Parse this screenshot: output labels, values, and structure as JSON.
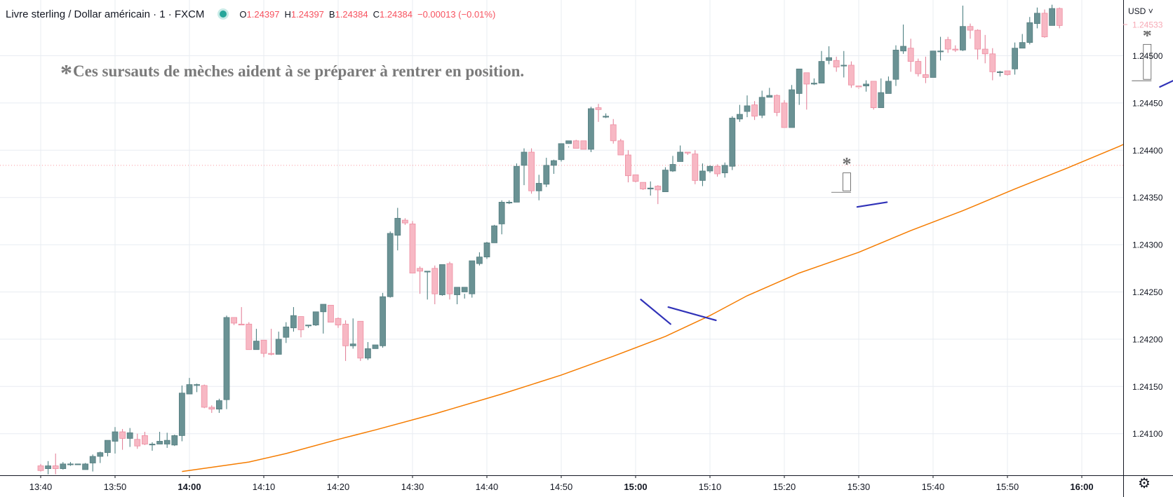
{
  "header": {
    "symbol": "Livre sterling / Dollar américain · 1 · FXCM",
    "open_label": "O",
    "open": "1.24397",
    "high_label": "H",
    "high": "1.24397",
    "low_label": "B",
    "low": "1.24384",
    "close_label": "C",
    "close": "1.24384",
    "change": "−0.00013 (−0.01%)"
  },
  "currency_button": "USD",
  "annotation": {
    "star": "*",
    "text": "Ces sursauts de mèches aident à se préparer à rentrer en position."
  },
  "colors": {
    "up": "#6a9294",
    "down": "#f7b8c4",
    "ma": "#f57c00",
    "trendline": "#3032b8",
    "grid": "#e8ecf2",
    "price_line": "#f7525f"
  },
  "chart_data": {
    "type": "candlestick",
    "x_ticks": [
      {
        "label": "13:40",
        "bold": false
      },
      {
        "label": "13:50",
        "bold": false
      },
      {
        "label": "14:00",
        "bold": true
      },
      {
        "label": "14:10",
        "bold": false
      },
      {
        "label": "14:20",
        "bold": false
      },
      {
        "label": "14:30",
        "bold": false
      },
      {
        "label": "14:40",
        "bold": false
      },
      {
        "label": "14:50",
        "bold": false
      },
      {
        "label": "15:00",
        "bold": true
      },
      {
        "label": "15:10",
        "bold": false
      },
      {
        "label": "15:20",
        "bold": false
      },
      {
        "label": "15:30",
        "bold": false
      },
      {
        "label": "15:40",
        "bold": false
      },
      {
        "label": "15:50",
        "bold": false
      },
      {
        "label": "16:00",
        "bold": true
      }
    ],
    "y_ticks": [
      "1.24500",
      "1.24450",
      "1.24400",
      "1.24350",
      "1.24300",
      "1.24250",
      "1.24200",
      "1.24150",
      "1.24100"
    ],
    "y_tick_values": [
      1.245,
      1.2445,
      1.244,
      1.2435,
      1.243,
      1.2425,
      1.242,
      1.2415,
      1.241
    ],
    "ylim": [
      1.24058,
      1.24558
    ],
    "current_price": "1.24533",
    "current_price_value": 1.24533,
    "dotted_level": 1.24384,
    "candles_ohlc": [
      [
        1.24066,
        1.24061,
        1.24068,
        1.2406
      ],
      [
        1.24063,
        1.24066,
        1.24071,
        1.24057
      ],
      [
        1.24066,
        1.24063,
        1.24079,
        1.24057
      ],
      [
        1.24063,
        1.24068,
        1.2407,
        1.24062
      ],
      [
        1.24068,
        1.24068,
        1.2407,
        1.24066
      ],
      [
        1.24068,
        1.24068,
        1.24068,
        1.24068
      ],
      [
        1.24062,
        1.24068,
        1.24069,
        1.24062
      ],
      [
        1.24069,
        1.24076,
        1.24078,
        1.2406
      ],
      [
        1.24076,
        1.2408,
        1.24081,
        1.24069
      ],
      [
        1.2408,
        1.24093,
        1.24093,
        1.24076
      ],
      [
        1.24092,
        1.24102,
        1.24107,
        1.24079
      ],
      [
        1.24102,
        1.24095,
        1.24105,
        1.24083
      ],
      [
        1.24095,
        1.24101,
        1.24106,
        1.24086
      ],
      [
        1.24094,
        1.24087,
        1.241,
        1.24084
      ],
      [
        1.24098,
        1.24089,
        1.24102,
        1.24088
      ],
      [
        1.24089,
        1.24089,
        1.24091,
        1.24082
      ],
      [
        1.24089,
        1.24092,
        1.24102,
        1.2409
      ],
      [
        1.24089,
        1.24093,
        1.24101,
        1.24085
      ],
      [
        1.24088,
        1.24098,
        1.24099,
        1.24087
      ],
      [
        1.24098,
        1.24143,
        1.24151,
        1.24092
      ],
      [
        1.24142,
        1.24152,
        1.24159,
        1.24145
      ],
      [
        1.24152,
        1.24152,
        1.24153,
        1.24144
      ],
      [
        1.24151,
        1.24128,
        1.24152,
        1.24127
      ],
      [
        1.24128,
        1.24126,
        1.2413,
        1.24122
      ],
      [
        1.24126,
        1.24135,
        1.24137,
        1.24122
      ],
      [
        1.24136,
        1.24223,
        1.24225,
        1.24126
      ],
      [
        1.24223,
        1.24217,
        1.24221,
        1.24215
      ],
      [
        1.24216,
        1.24215,
        1.24234,
        1.24216
      ],
      [
        1.24216,
        1.24189,
        1.24218,
        1.24191
      ],
      [
        1.24189,
        1.24198,
        1.24211,
        1.2419
      ],
      [
        1.24199,
        1.24185,
        1.24199,
        1.24181
      ],
      [
        1.24185,
        1.24184,
        1.24211,
        1.24183
      ],
      [
        1.24184,
        1.242,
        1.24208,
        1.24196
      ],
      [
        1.24202,
        1.24213,
        1.24218,
        1.24196
      ],
      [
        1.24212,
        1.24225,
        1.24234,
        1.24208
      ],
      [
        1.24224,
        1.2421,
        1.24224,
        1.24202
      ],
      [
        1.24215,
        1.24215,
        1.24214,
        1.24212
      ],
      [
        1.24215,
        1.24229,
        1.24229,
        1.24214
      ],
      [
        1.24229,
        1.24237,
        1.24237,
        1.24206
      ],
      [
        1.24236,
        1.24218,
        1.24236,
        1.24218
      ],
      [
        1.24222,
        1.24215,
        1.24223,
        1.24212
      ],
      [
        1.24216,
        1.24193,
        1.2422,
        1.24177
      ],
      [
        1.24193,
        1.24195,
        1.24222,
        1.2419
      ],
      [
        1.24219,
        1.2418,
        1.24219,
        1.24177
      ],
      [
        1.2418,
        1.2419,
        1.24197,
        1.24178
      ],
      [
        1.2419,
        1.24194,
        1.24193,
        1.24191
      ],
      [
        1.24193,
        1.24245,
        1.24249,
        1.24191
      ],
      [
        1.24245,
        1.24312,
        1.24314,
        1.24244
      ],
      [
        1.2431,
        1.24328,
        1.24339,
        1.24294
      ],
      [
        1.24326,
        1.24323,
        1.24328,
        1.24321
      ],
      [
        1.24322,
        1.2427,
        1.24325,
        1.2427
      ],
      [
        1.24275,
        1.24272,
        1.24277,
        1.24248
      ],
      [
        1.24272,
        1.24272,
        1.24272,
        1.24242
      ],
      [
        1.24275,
        1.24248,
        1.24278,
        1.24237
      ],
      [
        1.24247,
        1.24279,
        1.24279,
        1.24246
      ],
      [
        1.2428,
        1.24248,
        1.24282,
        1.24242
      ],
      [
        1.24247,
        1.24255,
        1.24252,
        1.24237
      ],
      [
        1.2425,
        1.24255,
        1.24248,
        1.24243
      ],
      [
        1.24248,
        1.24283,
        1.24281,
        1.24244
      ],
      [
        1.2428,
        1.24287,
        1.24292,
        1.24278
      ],
      [
        1.24287,
        1.24302,
        1.24303,
        1.24285
      ],
      [
        1.24302,
        1.2432,
        1.24321,
        1.24302
      ],
      [
        1.24322,
        1.24345,
        1.24347,
        1.24311
      ],
      [
        1.24345,
        1.24345,
        1.24347,
        1.24343
      ],
      [
        1.24345,
        1.24383,
        1.24386,
        1.24346
      ],
      [
        1.24384,
        1.24398,
        1.24402,
        1.24363
      ],
      [
        1.24398,
        1.24357,
        1.24402,
        1.24354
      ],
      [
        1.24357,
        1.24365,
        1.24374,
        1.24347
      ],
      [
        1.24364,
        1.24384,
        1.24392,
        1.24361
      ],
      [
        1.24384,
        1.24389,
        1.2439,
        1.24375
      ],
      [
        1.2439,
        1.24407,
        1.24406,
        1.24388
      ],
      [
        1.24407,
        1.2441,
        1.24404,
        1.24403
      ],
      [
        1.2441,
        1.24402,
        1.24411,
        1.24402
      ],
      [
        1.2441,
        1.24401,
        1.2441,
        1.24401
      ],
      [
        1.24401,
        1.24444,
        1.24446,
        1.24398
      ],
      [
        1.24445,
        1.24443,
        1.24449,
        1.2443
      ],
      [
        1.24435,
        1.24436,
        1.24439,
        1.24434
      ],
      [
        1.24427,
        1.2441,
        1.24433,
        1.24407
      ],
      [
        1.2441,
        1.24395,
        1.24412,
        1.24395
      ],
      [
        1.24395,
        1.24373,
        1.244,
        1.24366
      ],
      [
        1.24374,
        1.24367,
        1.24373,
        1.24366
      ],
      [
        1.24366,
        1.24359,
        1.24366,
        1.24358
      ],
      [
        1.24359,
        1.2436,
        1.24367,
        1.24352
      ],
      [
        1.24362,
        1.24358,
        1.24363,
        1.24343
      ],
      [
        1.24356,
        1.24379,
        1.24382,
        1.24356
      ],
      [
        1.24378,
        1.24385,
        1.24394,
        1.24377
      ],
      [
        1.24388,
        1.24398,
        1.24405,
        1.24391
      ],
      [
        1.24398,
        1.24397,
        1.24398,
        1.24395
      ],
      [
        1.24396,
        1.24368,
        1.244,
        1.24364
      ],
      [
        1.24368,
        1.24378,
        1.24386,
        1.24362
      ],
      [
        1.24378,
        1.24383,
        1.24384,
        1.24376
      ],
      [
        1.24383,
        1.24375,
        1.24385,
        1.24372
      ],
      [
        1.24376,
        1.24384,
        1.24387,
        1.24371
      ],
      [
        1.24383,
        1.24434,
        1.24436,
        1.24379
      ],
      [
        1.24433,
        1.24438,
        1.24448,
        1.2443
      ],
      [
        1.24441,
        1.24447,
        1.24458,
        1.24435
      ],
      [
        1.24448,
        1.24436,
        1.24452,
        1.24432
      ],
      [
        1.24437,
        1.24456,
        1.24463,
        1.24434
      ],
      [
        1.24456,
        1.24458,
        1.24466,
        1.24457
      ],
      [
        1.24458,
        1.2444,
        1.24459,
        1.24436
      ],
      [
        1.2445,
        1.24424,
        1.24453,
        1.24425
      ],
      [
        1.24424,
        1.24464,
        1.24469,
        1.24424
      ],
      [
        1.2446,
        1.24486,
        1.24486,
        1.24448
      ],
      [
        1.24482,
        1.2447,
        1.24474,
        1.24443
      ],
      [
        1.2447,
        1.24471,
        1.24476,
        1.24469
      ],
      [
        1.24471,
        1.24494,
        1.24505,
        1.24485
      ],
      [
        1.24495,
        1.24498,
        1.2451,
        1.24491
      ],
      [
        1.24495,
        1.24488,
        1.24499,
        1.24483
      ],
      [
        1.2449,
        1.2449,
        1.24505,
        1.24477
      ],
      [
        1.2449,
        1.24469,
        1.24494,
        1.24466
      ],
      [
        1.24468,
        1.24467,
        1.24466,
        1.24465
      ],
      [
        1.24468,
        1.2447,
        1.24474,
        1.24462
      ],
      [
        1.24473,
        1.24445,
        1.24473,
        1.24443
      ],
      [
        1.24445,
        1.24461,
        1.24476,
        1.24448
      ],
      [
        1.2446,
        1.24473,
        1.24478,
        1.2447
      ],
      [
        1.24475,
        1.24506,
        1.24511,
        1.24468
      ],
      [
        1.24505,
        1.2451,
        1.24533,
        1.24502
      ],
      [
        1.24508,
        1.24494,
        1.24518,
        1.24483
      ],
      [
        1.24494,
        1.24481,
        1.24497,
        1.24478
      ],
      [
        1.2448,
        1.24477,
        1.24499,
        1.24471
      ],
      [
        1.24477,
        1.24505,
        1.24501,
        1.24477
      ],
      [
        1.24505,
        1.24505,
        1.2452,
        1.24495
      ],
      [
        1.24517,
        1.24507,
        1.2452,
        1.24503
      ],
      [
        1.24507,
        1.24506,
        1.24511,
        1.24504
      ],
      [
        1.24506,
        1.24531,
        1.24553,
        1.24505
      ],
      [
        1.24531,
        1.24527,
        1.24534,
        1.24518
      ],
      [
        1.24527,
        1.24507,
        1.24528,
        1.24496
      ],
      [
        1.24507,
        1.24502,
        1.24522,
        1.24492
      ],
      [
        1.24502,
        1.24483,
        1.24508,
        1.24474
      ],
      [
        1.24483,
        1.24483,
        1.24484,
        1.24478
      ],
      [
        1.24484,
        1.2448,
        1.24484,
        1.24479
      ],
      [
        1.24486,
        1.24508,
        1.24514,
        1.2448
      ],
      [
        1.24508,
        1.24514,
        1.24523,
        1.24512
      ],
      [
        1.24514,
        1.24535,
        1.24541,
        1.24512
      ],
      [
        1.24534,
        1.24545,
        1.24551,
        1.24529
      ],
      [
        1.24545,
        1.2452,
        1.24549,
        1.24519
      ],
      [
        1.24532,
        1.2455,
        1.24554,
        1.24532
      ],
      [
        1.2455,
        1.24532,
        1.24551,
        1.24529
      ]
    ],
    "ma_points": [
      [
        19,
        1.2406
      ],
      [
        28,
        1.2407
      ],
      [
        33,
        1.24079
      ],
      [
        40,
        1.24094
      ],
      [
        45,
        1.24104
      ],
      [
        53,
        1.24121
      ],
      [
        62,
        1.24142
      ],
      [
        70,
        1.24162
      ],
      [
        77,
        1.24182
      ],
      [
        84,
        1.24203
      ],
      [
        90,
        1.24225
      ],
      [
        95,
        1.24246
      ],
      [
        102,
        1.2427
      ],
      [
        110,
        1.24292
      ],
      [
        117,
        1.24315
      ],
      [
        124,
        1.24336
      ],
      [
        131,
        1.24359
      ],
      [
        138,
        1.24381
      ],
      [
        145,
        1.24404
      ],
      [
        149,
        1.24418
      ],
      [
        156,
        1.24438
      ],
      [
        163,
        1.24455
      ],
      [
        168,
        1.24473
      ]
    ],
    "trendlines": [
      [
        [
          80.7,
          1.24242
        ],
        [
          84.7,
          1.24216
        ]
      ],
      [
        [
          84.4,
          1.24234
        ],
        [
          90.8,
          1.2422
        ]
      ],
      [
        [
          109.8,
          1.2434
        ],
        [
          113.8,
          1.24345
        ]
      ],
      [
        [
          150.5,
          1.24467
        ],
        [
          154.3,
          1.24481
        ]
      ],
      [
        [
          160.0,
          1.24477
        ],
        [
          164.5,
          1.2448
        ]
      ]
    ],
    "wick_markers": [
      {
        "x": 108.4,
        "top": 1.24376,
        "bottom": 1.24357
      },
      {
        "x": 148.8,
        "top": 1.24512,
        "bottom": 1.24475
      },
      {
        "x": 158.9,
        "top": 1.24507,
        "bottom": 1.24487
      }
    ]
  }
}
